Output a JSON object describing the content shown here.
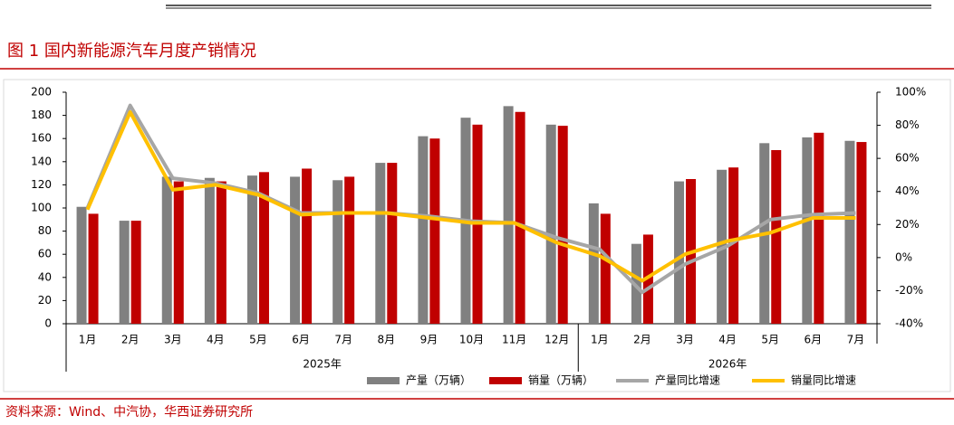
{
  "chart_data": {
    "type": "bar_line",
    "title": "图 1 国内新能源汽车月度产销情况",
    "source": "资料来源：Wind、中汽协，华西证券研究所",
    "groups": [
      {
        "label": "2025年",
        "categories": [
          "1月",
          "2月",
          "3月",
          "4月",
          "5月",
          "6月",
          "7月",
          "8月",
          "9月",
          "10月",
          "11月",
          "12月"
        ]
      },
      {
        "label": "2026年",
        "categories": [
          "1月",
          "2月",
          "3月",
          "4月",
          "5月",
          "6月",
          "7月"
        ]
      }
    ],
    "series": [
      {
        "name": "产量（万辆）",
        "type": "bar",
        "color": "#808080",
        "values": [
          101,
          89,
          127,
          126,
          128,
          127,
          124,
          139,
          162,
          178,
          188,
          172,
          104,
          69,
          123,
          133,
          156,
          161,
          158
        ]
      },
      {
        "name": "销量（万辆）",
        "type": "bar",
        "color": "#c00000",
        "values": [
          95,
          89,
          123,
          123,
          131,
          134,
          127,
          139,
          160,
          172,
          183,
          171,
          95,
          77,
          125,
          135,
          150,
          165,
          157
        ]
      },
      {
        "name": "产量同比增速",
        "type": "line",
        "axis": "y2",
        "color": "#a6a6a6",
        "values": [
          30,
          92,
          48,
          45,
          39,
          27,
          27,
          27,
          25,
          22,
          21,
          12,
          5,
          -21,
          -4,
          7,
          23,
          26,
          27
        ]
      },
      {
        "name": "销量同比增速",
        "type": "line",
        "axis": "y2",
        "color": "#ffc000",
        "values": [
          29,
          88,
          41,
          44,
          38,
          26,
          27,
          27,
          24,
          21,
          21,
          9,
          1,
          -14,
          2,
          10,
          15,
          24,
          24
        ]
      }
    ],
    "ylim": [
      0,
      200
    ],
    "yticks": [
      0,
      20,
      40,
      60,
      80,
      100,
      120,
      140,
      160,
      180,
      200
    ],
    "y2lim": [
      -40,
      100
    ],
    "y2ticks": [
      {
        "value": -40,
        "label": "-40%"
      },
      {
        "value": -20,
        "label": "-20%"
      },
      {
        "value": 0,
        "label": "0%"
      },
      {
        "value": 20,
        "label": "20%"
      },
      {
        "value": 40,
        "label": "40%"
      },
      {
        "value": 60,
        "label": "60%"
      },
      {
        "value": 80,
        "label": "80%"
      },
      {
        "value": 100,
        "label": "100%"
      }
    ]
  }
}
